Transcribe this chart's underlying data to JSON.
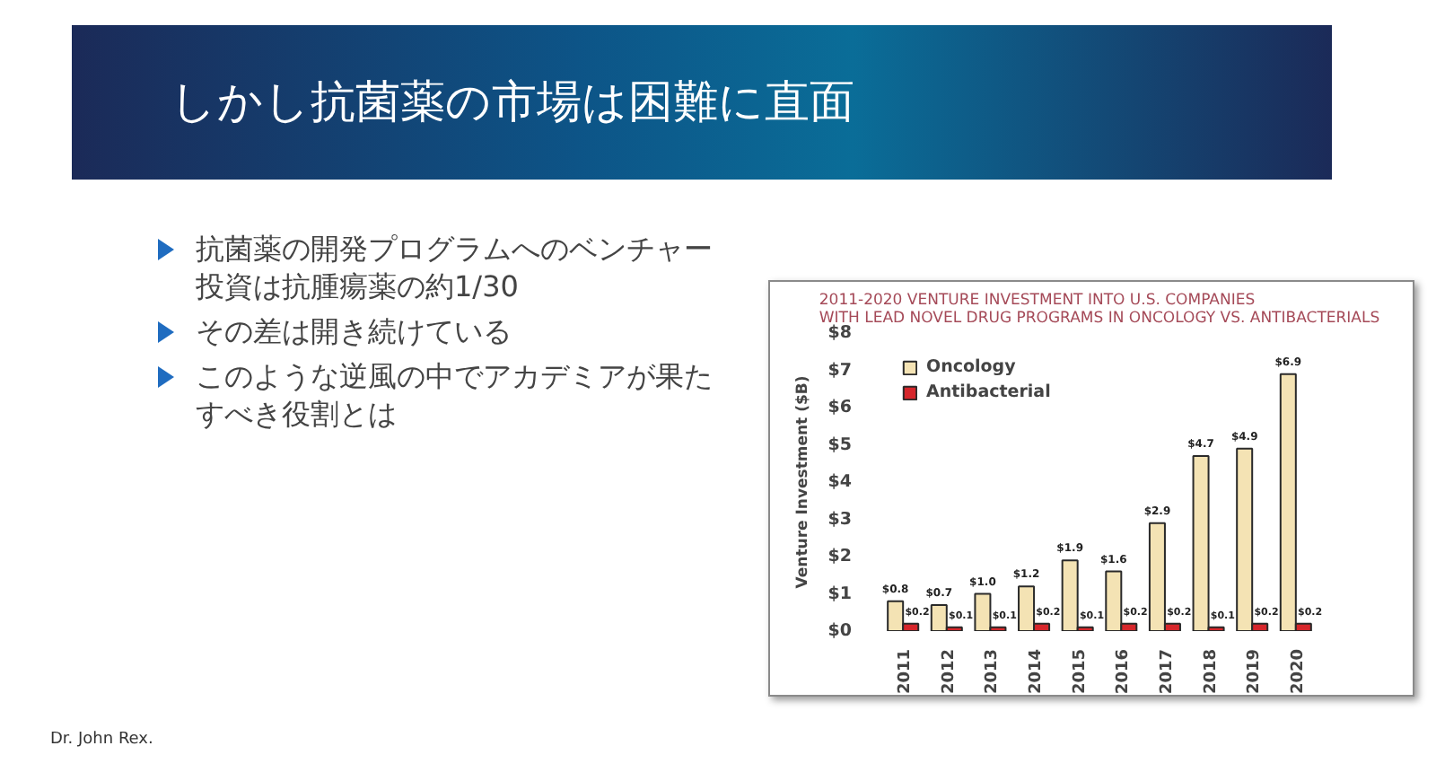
{
  "chart_data": {
    "type": "bar",
    "title": "しかし抗菌薬の市場は困難に直面",
    "subtitle": "2011-2020 VENTURE INVESTMENT INTO U.S. COMPANIES\nWITH LEAD NOVEL DRUG PROGRAMS IN ONCOLOGY VS. ANTIBACTERIALS",
    "ylabel": "Venture Investment ($B)",
    "categories": [
      "2011",
      "2012",
      "2013",
      "2014",
      "2015",
      "2016",
      "2017",
      "2018",
      "2019",
      "2020"
    ],
    "series": [
      {
        "name": "Oncology",
        "color": "#f4e3b4",
        "values": [
          0.8,
          0.7,
          1.0,
          1.2,
          1.9,
          1.6,
          2.9,
          4.7,
          4.9,
          6.9
        ],
        "value_labels": [
          "$0.8",
          "$0.7",
          "$1.0",
          "$1.2",
          "$1.9",
          "$1.6",
          "$2.9",
          "$4.7",
          "$4.9",
          "$6.9"
        ]
      },
      {
        "name": "Antibacterial",
        "color": "#d6262b",
        "values": [
          0.2,
          0.1,
          0.1,
          0.2,
          0.1,
          0.2,
          0.2,
          0.1,
          0.2,
          0.2
        ],
        "value_labels": [
          "$0.2",
          "$0.1",
          "$0.1",
          "$0.2",
          "$0.1",
          "$0.2",
          "$0.2",
          "$0.1",
          "$0.2",
          "$0.2"
        ]
      }
    ],
    "ylim": [
      0,
      8
    ],
    "yticks": [
      {
        "value": 0,
        "label": "$0"
      },
      {
        "value": 1,
        "label": "$1"
      },
      {
        "value": 2,
        "label": "$2"
      },
      {
        "value": 3,
        "label": "$3"
      },
      {
        "value": 4,
        "label": "$4"
      },
      {
        "value": 5,
        "label": "$5"
      },
      {
        "value": 6,
        "label": "$6"
      },
      {
        "value": 7,
        "label": "$7"
      },
      {
        "value": 8,
        "label": "$8"
      }
    ],
    "grid": false,
    "legend": "top left",
    "annotations": [
      "抗菌薬の開発プログラムへのベンチャー投資は抗腫瘍薬の約1/30",
      "その差は開き続けている",
      "このような逆風の中でアカデミアが果たすべき役割とは",
      "Dr. John Rex."
    ]
  }
}
